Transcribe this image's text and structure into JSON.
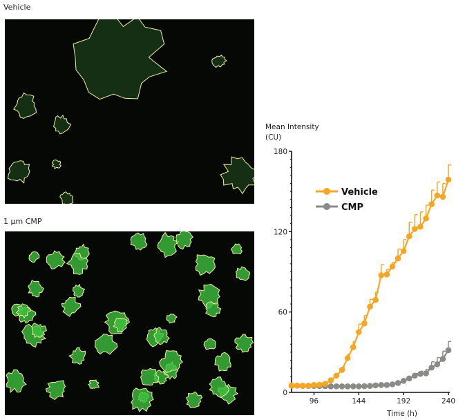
{
  "panels": [
    {
      "label": "Vehicle"
    },
    {
      "label": "1 µm CMP"
    }
  ],
  "colors": {
    "vehicle": "#F5A623",
    "cmp": "#8A8A86",
    "cell_fill": "#3FBF3F",
    "outline": "#F2EFA0",
    "image_bg": "#060806"
  },
  "chart_data": {
    "type": "line",
    "ylabel_line1": "Mean Intensity",
    "ylabel_line2": "(CU)",
    "xlabel": "Time (h)",
    "xlim": [
      72,
      240
    ],
    "ylim": [
      0,
      180
    ],
    "xticks": [
      "96",
      "144",
      "192",
      "240"
    ],
    "yticks": [
      "0",
      "60",
      "120",
      "180"
    ],
    "grid": false,
    "legend_position": "top-left",
    "x": [
      72,
      78,
      84,
      90,
      96,
      102,
      108,
      114,
      120,
      126,
      132,
      138,
      144,
      150,
      156,
      162,
      168,
      174,
      180,
      186,
      192,
      198,
      204,
      210,
      216,
      222,
      228,
      234,
      240
    ],
    "series": [
      {
        "name": "Vehicle",
        "values": [
          5.2,
          5,
          5,
          5,
          5.5,
          5.7,
          6.4,
          9,
          12.5,
          16.8,
          25.6,
          33.7,
          45,
          51.5,
          64,
          69,
          87.4,
          88,
          94,
          100,
          105.5,
          116.5,
          122,
          123.7,
          129.8,
          140.5,
          147,
          146,
          158.8
        ],
        "error_upper": [
          1,
          1,
          1,
          1,
          1,
          1,
          1,
          1,
          1.5,
          2,
          3,
          4.3,
          6,
          6,
          5.5,
          6,
          8,
          4,
          3,
          7,
          8.5,
          10.5,
          10.7,
          11,
          10,
          10.5,
          10,
          10,
          11
        ]
      },
      {
        "name": "CMP",
        "values": [
          5,
          5,
          4.8,
          4.8,
          4.8,
          4.7,
          4.6,
          4.5,
          4.5,
          4.5,
          4.5,
          4.5,
          4.5,
          4.6,
          4.8,
          5.2,
          5.5,
          5.5,
          6,
          7,
          8.6,
          10.4,
          12.5,
          13.8,
          14.2,
          18.5,
          21,
          25,
          31.5
        ],
        "error_upper": [
          0.5,
          0.5,
          0.5,
          0.5,
          0.5,
          0.5,
          0.5,
          0.5,
          0.5,
          0.5,
          0.5,
          0.5,
          0.5,
          0.5,
          0.5,
          0.5,
          0.5,
          0.5,
          0.7,
          1,
          1,
          1.2,
          1.5,
          2,
          3,
          4.3,
          5,
          5.8,
          6.5
        ]
      }
    ]
  }
}
